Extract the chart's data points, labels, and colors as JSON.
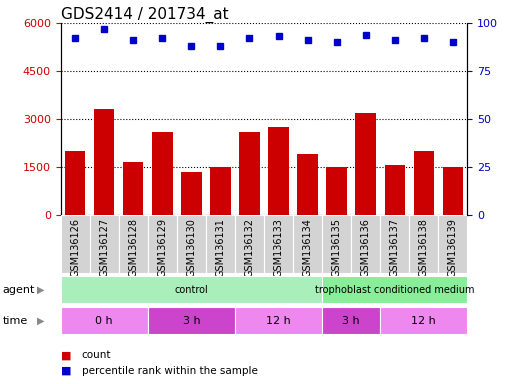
{
  "title": "GDS2414 / 201734_at",
  "samples": [
    "GSM136126",
    "GSM136127",
    "GSM136128",
    "GSM136129",
    "GSM136130",
    "GSM136131",
    "GSM136132",
    "GSM136133",
    "GSM136134",
    "GSM136135",
    "GSM136136",
    "GSM136137",
    "GSM136138",
    "GSM136139"
  ],
  "counts": [
    2000,
    3300,
    1650,
    2600,
    1350,
    1500,
    2600,
    2750,
    1900,
    1500,
    3200,
    1550,
    2000,
    1500
  ],
  "percentile_ranks": [
    92,
    97,
    91,
    92,
    88,
    88,
    92,
    93,
    91,
    90,
    94,
    91,
    92,
    90
  ],
  "bar_color": "#cc0000",
  "dot_color": "#0000cc",
  "ylim_left": [
    0,
    6000
  ],
  "ylim_right": [
    0,
    100
  ],
  "yticks_left": [
    0,
    1500,
    3000,
    4500,
    6000
  ],
  "yticks_right": [
    0,
    25,
    50,
    75,
    100
  ],
  "grid_values": [
    1500,
    3000,
    4500,
    6000
  ],
  "agent_groups": [
    {
      "label": "control",
      "start": 0,
      "end": 9,
      "color": "#aaeebb"
    },
    {
      "label": "trophoblast conditioned medium",
      "start": 9,
      "end": 14,
      "color": "#88ee99"
    }
  ],
  "time_groups": [
    {
      "label": "0 h",
      "start": 0,
      "end": 3,
      "color": "#ee88ee"
    },
    {
      "label": "3 h",
      "start": 3,
      "end": 6,
      "color": "#cc44cc"
    },
    {
      "label": "12 h",
      "start": 6,
      "end": 9,
      "color": "#ee88ee"
    },
    {
      "label": "3 h",
      "start": 9,
      "end": 11,
      "color": "#cc44cc"
    },
    {
      "label": "12 h",
      "start": 11,
      "end": 14,
      "color": "#ee88ee"
    }
  ],
  "legend_count_color": "#cc0000",
  "legend_pct_color": "#0000cc",
  "tick_fontsize": 8,
  "bar_width": 0.7,
  "title_fontsize": 11,
  "xlabel_gray": "#cccccc"
}
